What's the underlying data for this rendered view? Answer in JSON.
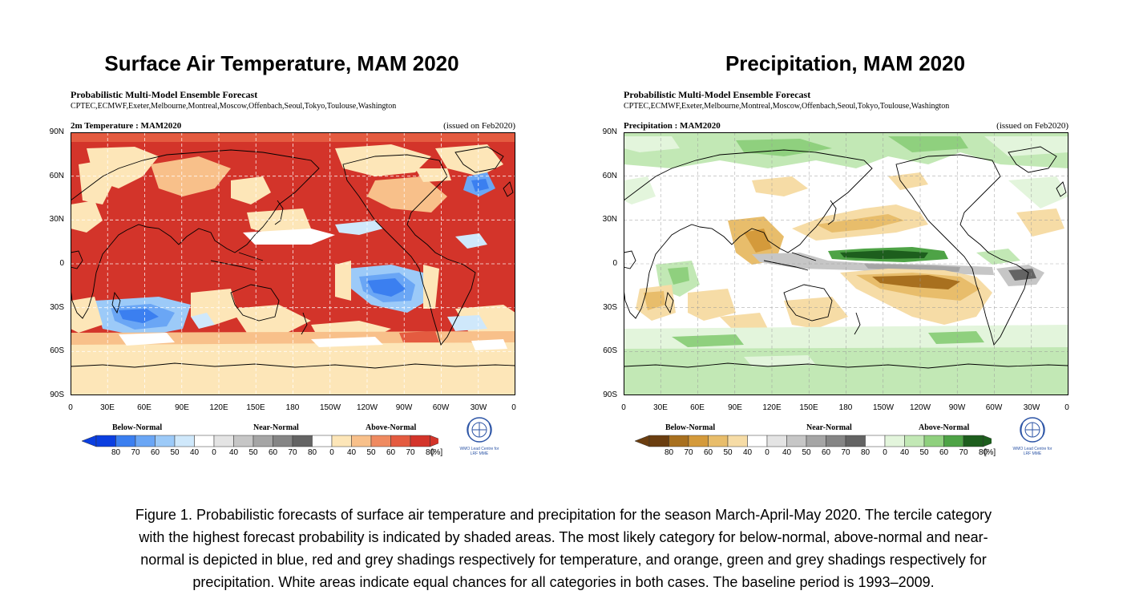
{
  "left": {
    "title": "Surface Air Temperature, MAM 2020",
    "subtitle": "Probabilistic Multi-Model Ensemble Forecast",
    "centres": "CPTEC,ECMWF,Exeter,Melbourne,Montreal,Moscow,Offenbach,Seoul,Tokyo,Toulouse,Washington",
    "map_title": "2m Temperature : MAM2020",
    "issued": "(issued on Feb2020)",
    "lat_labels": [
      "90N",
      "60N",
      "30N",
      "0",
      "30S",
      "60S",
      "90S"
    ],
    "lon_labels": [
      "0",
      "30E",
      "60E",
      "90E",
      "120E",
      "150E",
      "180",
      "150W",
      "120W",
      "90W",
      "60W",
      "30W",
      "0"
    ],
    "categories": [
      "Below-Normal",
      "Near-Normal",
      "Above-Normal"
    ],
    "colorbar_labels": [
      "80",
      "70",
      "60",
      "50",
      "40",
      "0",
      "40",
      "50",
      "60",
      "70",
      "80",
      "0",
      "40",
      "50",
      "60",
      "70",
      "80"
    ],
    "colorbar_unit": "[%]",
    "colorbar_colors": [
      "#0b3fe0",
      "#3b7ff0",
      "#6aa6f5",
      "#9ccaf8",
      "#cfe8fb",
      "#ffffff",
      "#e4e4e4",
      "#c6c6c6",
      "#a5a5a5",
      "#858585",
      "#646464",
      "#ffffff",
      "#fde6b8",
      "#f8c08a",
      "#ef8a60",
      "#e45b40",
      "#d3342a"
    ],
    "logo_text": "WMO Lead Centre for LRF MME"
  },
  "right": {
    "title": "Precipitation, MAM 2020",
    "subtitle": "Probabilistic Multi-Model Ensemble Forecast",
    "centres": "CPTEC,ECMWF,Exeter,Melbourne,Montreal,Moscow,Offenbach,Seoul,Tokyo,Toulouse,Washington",
    "map_title": "Precipitation : MAM2020",
    "issued": "(issued on Feb2020)",
    "lat_labels": [
      "90N",
      "60N",
      "30N",
      "0",
      "30S",
      "60S",
      "90S"
    ],
    "lon_labels": [
      "0",
      "30E",
      "60E",
      "90E",
      "120E",
      "150E",
      "180",
      "150W",
      "120W",
      "90W",
      "60W",
      "30W",
      "0"
    ],
    "categories": [
      "Below-Normal",
      "Near-Normal",
      "Above-Normal"
    ],
    "colorbar_labels": [
      "80",
      "70",
      "60",
      "50",
      "40",
      "0",
      "40",
      "50",
      "60",
      "70",
      "80",
      "0",
      "40",
      "50",
      "60",
      "70",
      "80"
    ],
    "colorbar_unit": "[%]",
    "colorbar_colors": [
      "#6b3e10",
      "#a8701f",
      "#d49a3b",
      "#e8bd6b",
      "#f6dca6",
      "#ffffff",
      "#e4e4e4",
      "#c6c6c6",
      "#a5a5a5",
      "#858585",
      "#646464",
      "#ffffff",
      "#e3f5dc",
      "#c2e8b5",
      "#8fd07e",
      "#4ea346",
      "#1d5e1d"
    ],
    "logo_text": "WMO Lead Centre for LRF MME"
  },
  "caption": [
    "Figure 1. Probabilistic forecasts of surface air temperature and precipitation for the season March-April-May  2020.  The tercile category",
    "with the highest forecast probability is indicated by shaded areas. The most likely category for below-normal, above-normal and near-",
    "normal is depicted in blue, red and grey shadings respectively for temperature, and orange, green and grey shadings respectively for",
    "precipitation. White areas indicate equal chances for all categories in both cases.  The baseline period is 1993–2009."
  ]
}
